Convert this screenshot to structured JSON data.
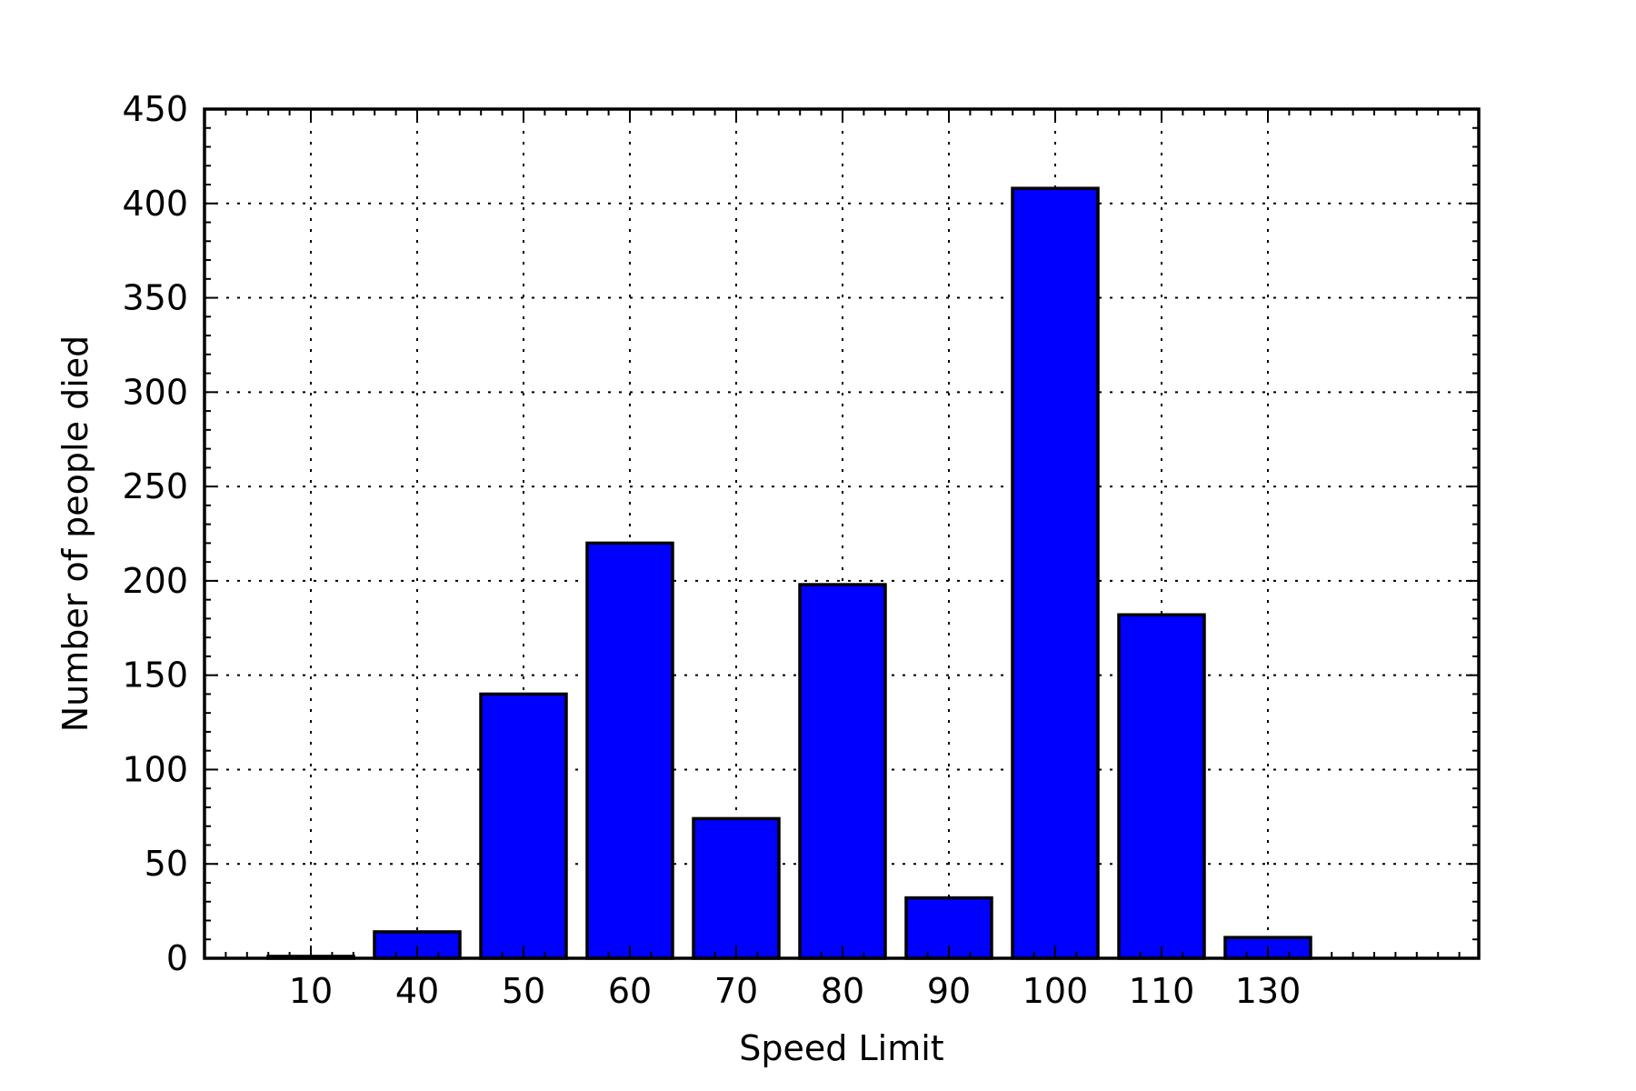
{
  "chart_data": {
    "type": "bar",
    "title": "",
    "xlabel": "Speed Limit",
    "ylabel": "Number of people died",
    "categories": [
      "10",
      "40",
      "50",
      "60",
      "70",
      "80",
      "90",
      "100",
      "110",
      "130"
    ],
    "values": [
      1,
      14,
      140,
      220,
      74,
      198,
      32,
      408,
      182,
      11
    ],
    "ylim": [
      0,
      450
    ],
    "yticks": [
      "0",
      "50",
      "100",
      "150",
      "200",
      "250",
      "300",
      "350",
      "400",
      "450"
    ],
    "bar_color": "#0000ff",
    "grid": true
  }
}
